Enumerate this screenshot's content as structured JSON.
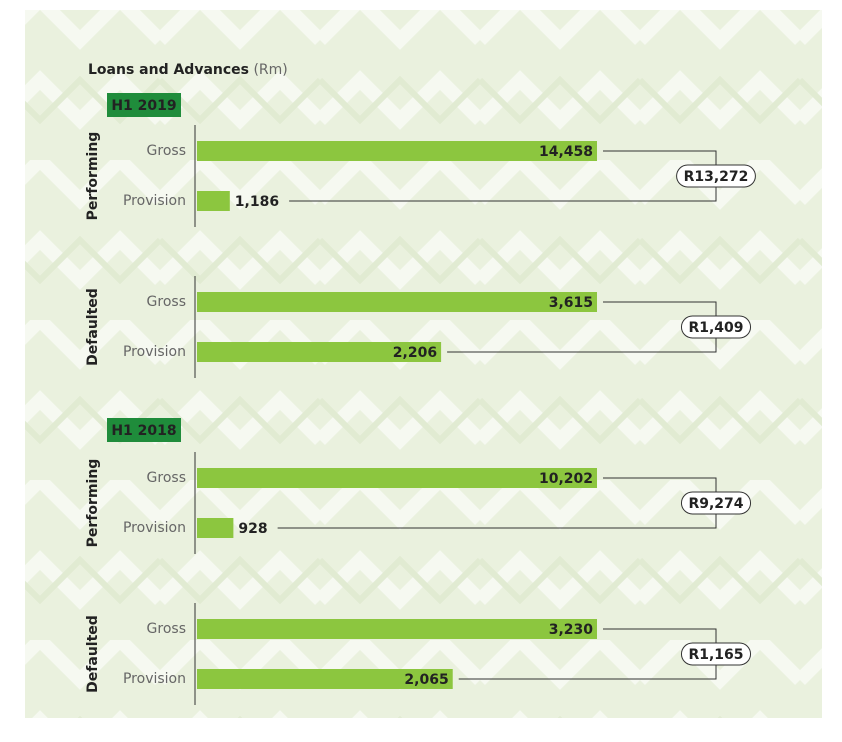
{
  "chart_data": {
    "type": "bar",
    "title": "Loans and Advances",
    "unit": "(Rm)",
    "color": "#8cc63f",
    "badge_color": "#1f8c3b",
    "sections": [
      {
        "name": "H1 2019",
        "groups": [
          {
            "name": "Performing",
            "categories": [
              "Gross",
              "Provision"
            ],
            "values": [
              14458,
              1186
            ],
            "value_labels": [
              "14,458",
              "1,186"
            ],
            "net": {
              "value": 13272,
              "label": "R13,272"
            }
          },
          {
            "name": "Defaulted",
            "categories": [
              "Gross",
              "Provision"
            ],
            "values": [
              3615,
              2206
            ],
            "value_labels": [
              "3,615",
              "2,206"
            ],
            "net": {
              "value": 1409,
              "label": "R1,409"
            }
          }
        ]
      },
      {
        "name": "H1 2018",
        "groups": [
          {
            "name": "Performing",
            "categories": [
              "Gross",
              "Provision"
            ],
            "values": [
              10202,
              928
            ],
            "value_labels": [
              "10,202",
              "928"
            ],
            "net": {
              "value": 9274,
              "label": "R9,274"
            }
          },
          {
            "name": "Defaulted",
            "categories": [
              "Gross",
              "Provision"
            ],
            "values": [
              3230,
              2065
            ],
            "value_labels": [
              "3,230",
              "2,065"
            ],
            "net": {
              "value": 1165,
              "label": "R1,165"
            }
          }
        ]
      }
    ]
  }
}
